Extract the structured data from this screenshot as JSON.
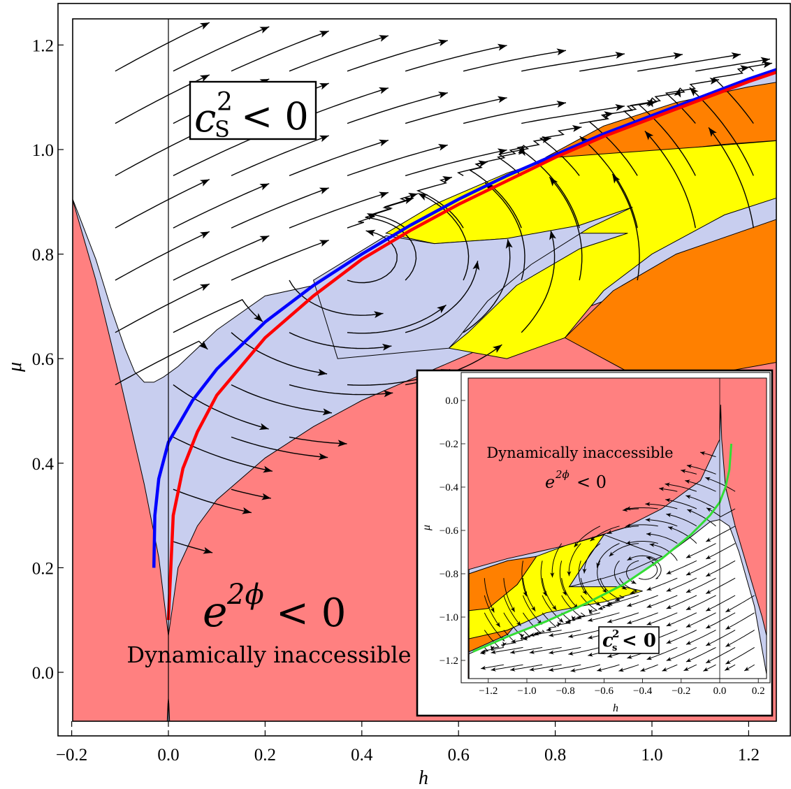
{
  "chart_data": [
    {
      "type": "stream",
      "title": "",
      "xlabel": "h",
      "ylabel": "μ",
      "xlim": [
        -0.23,
        1.28
      ],
      "ylim": [
        -0.13,
        1.27
      ],
      "xticks": [
        -0.2,
        0.0,
        0.2,
        0.4,
        0.6,
        0.8,
        1.0,
        1.2
      ],
      "xtick_labels": [
        "−0.2",
        "0.0",
        "0.2",
        "0.4",
        "0.6",
        "0.8",
        "1.0",
        "1.2"
      ],
      "yticks": [
        0.0,
        0.2,
        0.4,
        0.6,
        0.8,
        1.0,
        1.2
      ],
      "ytick_labels": [
        "0.0",
        "0.2",
        "0.4",
        "0.6",
        "0.8",
        "1.0",
        "1.2"
      ],
      "grid": false,
      "annotations": {
        "cs2_label_base": "c",
        "cs2_label_sup": "2",
        "cs2_label_sub": "S",
        "cs2_label_rel": "< 0",
        "e2phi_base": "e",
        "e2phi_sup": "2ϕ",
        "e2phi_rel": "< 0",
        "inaccessible": "Dynamically inaccessible"
      },
      "regions": [
        {
          "name": "inaccessible",
          "color": "#ff8080"
        },
        {
          "name": "allowed",
          "color": "#c8ceef"
        },
        {
          "name": "unstable",
          "color": "#ffffff"
        },
        {
          "name": "yellow-band",
          "color": "#ffff00"
        },
        {
          "name": "orange-band",
          "color": "#ff8000"
        }
      ],
      "series": [
        {
          "color": "#0000ff",
          "x": [
            -0.03,
            -0.028,
            -0.02,
            0.0,
            0.05,
            0.1,
            0.2,
            0.3,
            0.4,
            0.5,
            0.6,
            0.7,
            0.8,
            0.9,
            1.0,
            1.1,
            1.2,
            1.28
          ],
          "y": [
            0.2,
            0.3,
            0.37,
            0.44,
            0.52,
            0.58,
            0.67,
            0.74,
            0.8,
            0.855,
            0.905,
            0.95,
            0.99,
            1.03,
            1.065,
            1.1,
            1.135,
            1.16
          ]
        },
        {
          "color": "#ff0000",
          "x": [
            0.0,
            0.01,
            0.03,
            0.06,
            0.1,
            0.2,
            0.3,
            0.4,
            0.5,
            0.6,
            0.7,
            0.8,
            0.9,
            1.0,
            1.1,
            1.2,
            1.28
          ],
          "y": [
            0.1,
            0.3,
            0.39,
            0.46,
            0.53,
            0.64,
            0.72,
            0.79,
            0.845,
            0.895,
            0.94,
            0.985,
            1.025,
            1.06,
            1.095,
            1.13,
            1.155
          ]
        }
      ],
      "region_boundaries": {
        "lower_allowed_h": [
          0.0,
          0.02,
          0.06,
          0.1,
          0.2,
          0.3,
          0.4,
          0.5,
          0.6,
          0.7,
          0.8,
          0.9,
          1.0,
          1.1,
          1.25
        ],
        "lower_allowed_mu": [
          0.07,
          0.2,
          0.28,
          0.33,
          0.41,
          0.47,
          0.52,
          0.56,
          0.6,
          0.64,
          0.675,
          0.71,
          0.74,
          0.77,
          0.82
        ],
        "left_boundary_h": [
          -0.2,
          -0.15,
          -0.1,
          -0.05,
          -0.02,
          0.0
        ],
        "left_boundary_mu": [
          0.91,
          0.75,
          0.56,
          0.36,
          0.22,
          0.07
        ],
        "white_lower_h": [
          -0.15,
          -0.12,
          -0.09,
          -0.07,
          -0.05,
          -0.03,
          -0.01,
          0.02,
          0.06,
          0.1,
          0.2
        ],
        "white_lower_mu": [
          0.79,
          0.7,
          0.62,
          0.575,
          0.555,
          0.555,
          0.565,
          0.585,
          0.62,
          0.655,
          0.72
        ]
      }
    },
    {
      "type": "stream",
      "title": "",
      "xlabel": "h",
      "ylabel": "μ",
      "xlim": [
        -1.28,
        0.25
      ],
      "ylim": [
        -1.3,
        0.1
      ],
      "xticks": [
        -1.2,
        -1.0,
        -0.8,
        -0.6,
        -0.4,
        -0.2,
        0.0,
        0.2
      ],
      "xtick_labels": [
        "−1.2",
        "−1.0",
        "−0.8",
        "−0.6",
        "−0.4",
        "−0.2",
        "0.0",
        "0.2"
      ],
      "yticks": [
        0.0,
        -0.2,
        -0.4,
        -0.6,
        -0.8,
        -1.0,
        -1.2
      ],
      "ytick_labels": [
        "0.0",
        "−0.2",
        "−0.4",
        "−0.6",
        "−0.8",
        "−1.0",
        "−1.2"
      ],
      "grid": false,
      "annotations": {
        "inaccessible": "Dynamically inaccessible",
        "e2phi_base": "e",
        "e2phi_sup": "2ϕ",
        "e2phi_rel": "< 0",
        "cs2_label_base": "c",
        "cs2_label_sup": "2",
        "cs2_label_sub": "s",
        "cs2_label_rel": "< 0"
      },
      "series": [
        {
          "color": "#33dd33",
          "x": [
            -1.28,
            -1.1,
            -0.9,
            -0.7,
            -0.5,
            -0.3,
            -0.15,
            -0.05,
            0.0,
            0.03,
            0.05,
            0.06
          ],
          "y": [
            -1.16,
            -1.09,
            -1.02,
            -0.94,
            -0.85,
            -0.73,
            -0.62,
            -0.53,
            -0.47,
            -0.4,
            -0.32,
            -0.2
          ]
        }
      ]
    }
  ]
}
